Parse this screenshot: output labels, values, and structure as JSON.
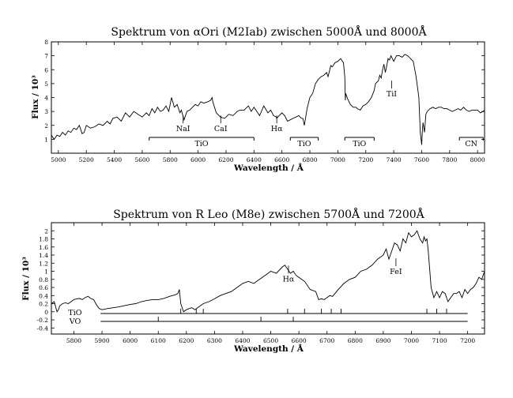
{
  "chart_data": [
    {
      "type": "line",
      "title": "Spektrum von αOri (M2Iab) zwischen 5000Å und 8000Å",
      "xlabel": "Wavelength / Å",
      "ylabel": "Flux / 10³",
      "xlim": [
        4950,
        8050
      ],
      "ylim": [
        0,
        8
      ],
      "xticks": [
        5000,
        5200,
        5400,
        5600,
        5800,
        6000,
        6200,
        6400,
        6600,
        6800,
        7000,
        7200,
        7400,
        7600,
        7800,
        8000
      ],
      "yticks": [
        1,
        2,
        3,
        4,
        5,
        6,
        7,
        8
      ],
      "series": [
        {
          "x": [
            4950,
            4970,
            4990,
            5010,
            5030,
            5050,
            5070,
            5090,
            5110,
            5130,
            5150,
            5170,
            5185,
            5200,
            5230,
            5260,
            5290,
            5320,
            5350,
            5370,
            5390,
            5420,
            5450,
            5480,
            5510,
            5540,
            5570,
            5600,
            5630,
            5650,
            5670,
            5690,
            5710,
            5730,
            5750,
            5770,
            5790,
            5810,
            5830,
            5850,
            5870,
            5880,
            5900,
            5920,
            5940,
            5960,
            5980,
            6000,
            6020,
            6040,
            6070,
            6090,
            6100,
            6105,
            6130,
            6160,
            6190,
            6220,
            6250,
            6280,
            6300,
            6330,
            6360,
            6380,
            6400,
            6420,
            6440,
            6470,
            6500,
            6520,
            6540,
            6560,
            6563,
            6580,
            6600,
            6620,
            6640,
            6660,
            6680,
            6700,
            6720,
            6740,
            6750,
            6760,
            6780,
            6800,
            6820,
            6840,
            6860,
            6880,
            6900,
            6910,
            6920,
            6930,
            6940,
            6950,
            6960,
            6980,
            7000,
            7020,
            7040,
            7050,
            7054,
            7056,
            7070,
            7090,
            7110,
            7130,
            7140,
            7160,
            7180,
            7200,
            7220,
            7240,
            7260,
            7270,
            7290,
            7300,
            7310,
            7320,
            7330,
            7340,
            7350,
            7360,
            7370,
            7380,
            7400,
            7420,
            7440,
            7460,
            7480,
            7500,
            7520,
            7540,
            7560,
            7580,
            7590,
            7600,
            7605,
            7610,
            7620,
            7630,
            7640,
            7660,
            7680,
            7700,
            7720,
            7740,
            7760,
            7780,
            7800,
            7820,
            7840,
            7860,
            7880,
            7900,
            7920,
            7940,
            7960,
            7980,
            8000,
            8020,
            8040,
            8050
          ],
          "y": [
            1.3,
            1.0,
            1.3,
            1.2,
            1.5,
            1.3,
            1.6,
            1.5,
            1.8,
            1.7,
            2.0,
            1.4,
            1.5,
            2.0,
            1.8,
            1.9,
            2.1,
            2.0,
            2.3,
            2.1,
            2.5,
            2.6,
            2.3,
            2.9,
            2.6,
            3.0,
            2.8,
            2.6,
            2.9,
            2.7,
            3.2,
            2.9,
            3.3,
            3.0,
            3.1,
            3.4,
            3.0,
            4.0,
            3.3,
            3.5,
            2.9,
            3.1,
            2.4,
            3.0,
            3.1,
            3.3,
            3.5,
            3.4,
            3.7,
            3.6,
            3.7,
            3.8,
            4.0,
            3.7,
            2.9,
            2.6,
            2.5,
            2.8,
            2.7,
            3.0,
            3.1,
            3.1,
            3.4,
            3.0,
            3.3,
            3.0,
            2.7,
            3.4,
            2.9,
            3.1,
            2.7,
            2.6,
            2.5,
            2.7,
            2.9,
            2.7,
            2.3,
            2.4,
            2.5,
            2.6,
            2.7,
            2.5,
            2.5,
            2.0,
            3.2,
            4.0,
            4.3,
            5.0,
            5.3,
            5.5,
            5.6,
            5.7,
            5.8,
            5.5,
            5.9,
            6.3,
            6.2,
            6.5,
            6.6,
            6.8,
            6.5,
            5.5,
            3.8,
            4.3,
            3.9,
            3.5,
            3.3,
            3.3,
            3.2,
            3.1,
            3.4,
            3.5,
            3.7,
            4.0,
            4.5,
            5.0,
            5.2,
            5.6,
            5.4,
            6.0,
            6.4,
            5.8,
            6.3,
            6.8,
            6.7,
            7.0,
            6.6,
            7.0,
            7.0,
            6.9,
            7.1,
            7.0,
            6.8,
            6.6,
            5.5,
            4.0,
            1.5,
            0.6,
            1.6,
            2.2,
            1.5,
            2.8,
            3.0,
            3.2,
            3.3,
            3.2,
            3.3,
            3.3,
            3.2,
            3.2,
            3.1,
            3.0,
            3.1,
            3.2,
            3.1,
            3.3,
            3.1,
            3.0,
            3.1,
            3.1,
            3.1,
            2.9,
            3.0,
            3.1
          ]
        }
      ],
      "annotations": [
        {
          "text": "NaI",
          "x": 5893,
          "y": 2.6
        },
        {
          "text": "CaI",
          "x": 6162,
          "y": 2.6
        },
        {
          "text": "Hα",
          "x": 6563,
          "y": 2.6
        },
        {
          "text": "TiI",
          "x": 7385,
          "y": 5.1
        }
      ],
      "bands": [
        {
          "label": "TiO",
          "x1": 5650,
          "x2": 6400
        },
        {
          "label": "TiO",
          "x1": 6660,
          "x2": 6860
        },
        {
          "label": "TiO",
          "x1": 7050,
          "x2": 7260
        },
        {
          "label": "CN",
          "x1": 7870,
          "x2": 8040
        }
      ]
    },
    {
      "type": "line",
      "title": "Spektrum von R Leo (M8e) zwischen 5700Å und 7200Å",
      "xlabel": "Wavelength / Å",
      "ylabel": "Flux / 10³",
      "xlim": [
        5720,
        7260
      ],
      "ylim": [
        -0.55,
        2.2
      ],
      "xticks": [
        5800,
        5900,
        6000,
        6100,
        6200,
        6300,
        6400,
        6500,
        6600,
        6700,
        6800,
        6900,
        7000,
        7100,
        7200
      ],
      "yticks": [
        -0.4,
        -0.2,
        0,
        0.2,
        0.4,
        0.6,
        0.8,
        1.0,
        1.2,
        1.4,
        1.6,
        1.8,
        2.0
      ],
      "series": [
        {
          "x": [
            5720,
            5730,
            5740,
            5745,
            5750,
            5760,
            5770,
            5780,
            5790,
            5800,
            5810,
            5820,
            5830,
            5840,
            5850,
            5860,
            5870,
            5880,
            5890,
            5900,
            5920,
            5940,
            5960,
            5980,
            6000,
            6020,
            6040,
            6060,
            6080,
            6100,
            6120,
            6140,
            6160,
            6170,
            6175,
            6180,
            6190,
            6200,
            6210,
            6220,
            6230,
            6240,
            6260,
            6280,
            6300,
            6320,
            6340,
            6360,
            6380,
            6400,
            6420,
            6440,
            6460,
            6480,
            6500,
            6520,
            6540,
            6550,
            6560,
            6570,
            6580,
            6590,
            6600,
            6610,
            6620,
            6640,
            6660,
            6670,
            6680,
            6690,
            6700,
            6710,
            6720,
            6740,
            6760,
            6780,
            6800,
            6820,
            6840,
            6860,
            6880,
            6900,
            6910,
            6920,
            6930,
            6940,
            6950,
            6960,
            6970,
            6980,
            6990,
            7000,
            7010,
            7020,
            7030,
            7040,
            7045,
            7050,
            7055,
            7060,
            7070,
            7080,
            7090,
            7100,
            7110,
            7120,
            7130,
            7140,
            7150,
            7160,
            7170,
            7180,
            7190,
            7200,
            7210,
            7220,
            7230,
            7240,
            7250,
            7260
          ],
          "y": [
            0.2,
            0.25,
            0.0,
            0.05,
            0.15,
            0.2,
            0.22,
            0.2,
            0.25,
            0.3,
            0.32,
            0.33,
            0.3,
            0.35,
            0.38,
            0.33,
            0.3,
            0.18,
            0.08,
            0.05,
            0.08,
            0.1,
            0.12,
            0.15,
            0.18,
            0.2,
            0.25,
            0.28,
            0.3,
            0.3,
            0.33,
            0.38,
            0.42,
            0.45,
            0.55,
            0.2,
            0.0,
            0.05,
            0.08,
            0.1,
            0.05,
            0.1,
            0.2,
            0.25,
            0.32,
            0.4,
            0.45,
            0.5,
            0.6,
            0.7,
            0.75,
            0.7,
            0.8,
            0.9,
            1.0,
            0.95,
            1.1,
            1.15,
            1.05,
            0.95,
            1.0,
            0.9,
            0.85,
            0.8,
            0.75,
            0.55,
            0.5,
            0.3,
            0.32,
            0.3,
            0.35,
            0.4,
            0.38,
            0.55,
            0.7,
            0.8,
            0.85,
            1.0,
            1.05,
            1.15,
            1.3,
            1.4,
            1.55,
            1.3,
            1.5,
            1.7,
            1.65,
            1.5,
            1.8,
            1.7,
            1.95,
            1.85,
            1.9,
            2.0,
            1.8,
            1.7,
            1.85,
            1.75,
            1.8,
            1.5,
            0.6,
            0.35,
            0.5,
            0.35,
            0.5,
            0.45,
            0.25,
            0.35,
            0.45,
            0.45,
            0.5,
            0.35,
            0.55,
            0.45,
            0.55,
            0.6,
            0.7,
            0.85,
            0.8,
            1.0
          ]
        }
      ],
      "annotations": [
        {
          "text": "Hα",
          "x": 6563,
          "y": 1.1
        },
        {
          "text": "FeI",
          "x": 6945,
          "y": 1.28
        }
      ],
      "bands": [
        {
          "label": "TiO",
          "x1": 5895,
          "x2": 7200
        },
        {
          "label": "VO",
          "x1": 5895,
          "x2": 7200
        }
      ],
      "band_ticks_tio": [
        6180,
        6235,
        6260,
        6560,
        6620,
        6680,
        6715,
        6750,
        7055,
        7090,
        7125
      ],
      "band_ticks_vo": [
        6100,
        6465,
        6580
      ]
    }
  ]
}
